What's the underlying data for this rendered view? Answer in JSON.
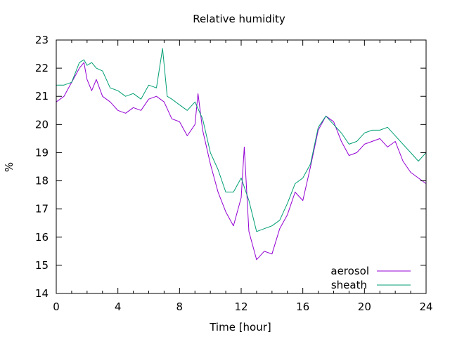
{
  "chart_data": {
    "type": "line",
    "title": "Relative humidity",
    "xlabel": "Time [hour]",
    "ylabel": "%",
    "xlim": [
      0,
      24
    ],
    "ylim": [
      14,
      23
    ],
    "xticks": [
      0,
      4,
      8,
      12,
      16,
      20,
      24
    ],
    "yticks": [
      14,
      15,
      16,
      17,
      18,
      19,
      20,
      21,
      22,
      23
    ],
    "grid": false,
    "legend_position": "bottom-right",
    "series": [
      {
        "name": "aerosol",
        "color": "#9400d3",
        "x": [
          0,
          0.5,
          1,
          1.5,
          1.8,
          2,
          2.3,
          2.6,
          3,
          3.5,
          4,
          4.5,
          5,
          5.5,
          6,
          6.5,
          7,
          7.5,
          8,
          8.5,
          9,
          9.2,
          9.5,
          10,
          10.5,
          11,
          11.5,
          12,
          12.2,
          12.5,
          13,
          13.5,
          14,
          14.5,
          15,
          15.5,
          16,
          16.5,
          17,
          17.5,
          18,
          18.5,
          19,
          19.5,
          20,
          20.5,
          21,
          21.5,
          22,
          22.5,
          23,
          23.5,
          24
        ],
        "y": [
          20.8,
          21.0,
          21.5,
          22.0,
          22.2,
          21.6,
          21.2,
          21.6,
          21.0,
          20.8,
          20.5,
          20.4,
          20.6,
          20.5,
          20.9,
          21.0,
          20.8,
          20.2,
          20.1,
          19.6,
          20.0,
          21.1,
          19.8,
          18.6,
          17.6,
          16.9,
          16.4,
          17.4,
          19.2,
          16.2,
          15.2,
          15.5,
          15.4,
          16.3,
          16.8,
          17.6,
          17.3,
          18.5,
          19.8,
          20.3,
          20.1,
          19.4,
          18.9,
          19.0,
          19.3,
          19.4,
          19.5,
          19.2,
          19.4,
          18.7,
          18.3,
          18.1,
          17.9
        ]
      },
      {
        "name": "sheath",
        "color": "#009e73",
        "x": [
          0,
          0.5,
          1,
          1.5,
          1.8,
          2,
          2.3,
          2.6,
          3,
          3.5,
          4,
          4.5,
          5,
          5.5,
          6,
          6.5,
          6.9,
          7.2,
          7.5,
          8,
          8.5,
          9,
          9.5,
          10,
          10.5,
          11,
          11.5,
          12,
          12.5,
          13,
          13.5,
          14,
          14.5,
          15,
          15.5,
          16,
          16.5,
          17,
          17.5,
          18,
          18.5,
          19,
          19.5,
          20,
          20.5,
          21,
          21.5,
          22,
          22.5,
          23,
          23.5,
          24
        ],
        "y": [
          21.4,
          21.4,
          21.5,
          22.2,
          22.3,
          22.1,
          22.2,
          22.0,
          21.9,
          21.3,
          21.2,
          21.0,
          21.1,
          20.9,
          21.4,
          21.3,
          22.7,
          21.0,
          20.9,
          20.7,
          20.5,
          20.8,
          20.2,
          19.0,
          18.4,
          17.6,
          17.6,
          18.1,
          17.3,
          16.2,
          16.3,
          16.4,
          16.6,
          17.2,
          17.9,
          18.1,
          18.6,
          19.9,
          20.3,
          20.0,
          19.7,
          19.3,
          19.4,
          19.7,
          19.8,
          19.8,
          19.9,
          19.6,
          19.3,
          19.0,
          18.7,
          19.0
        ]
      }
    ]
  }
}
